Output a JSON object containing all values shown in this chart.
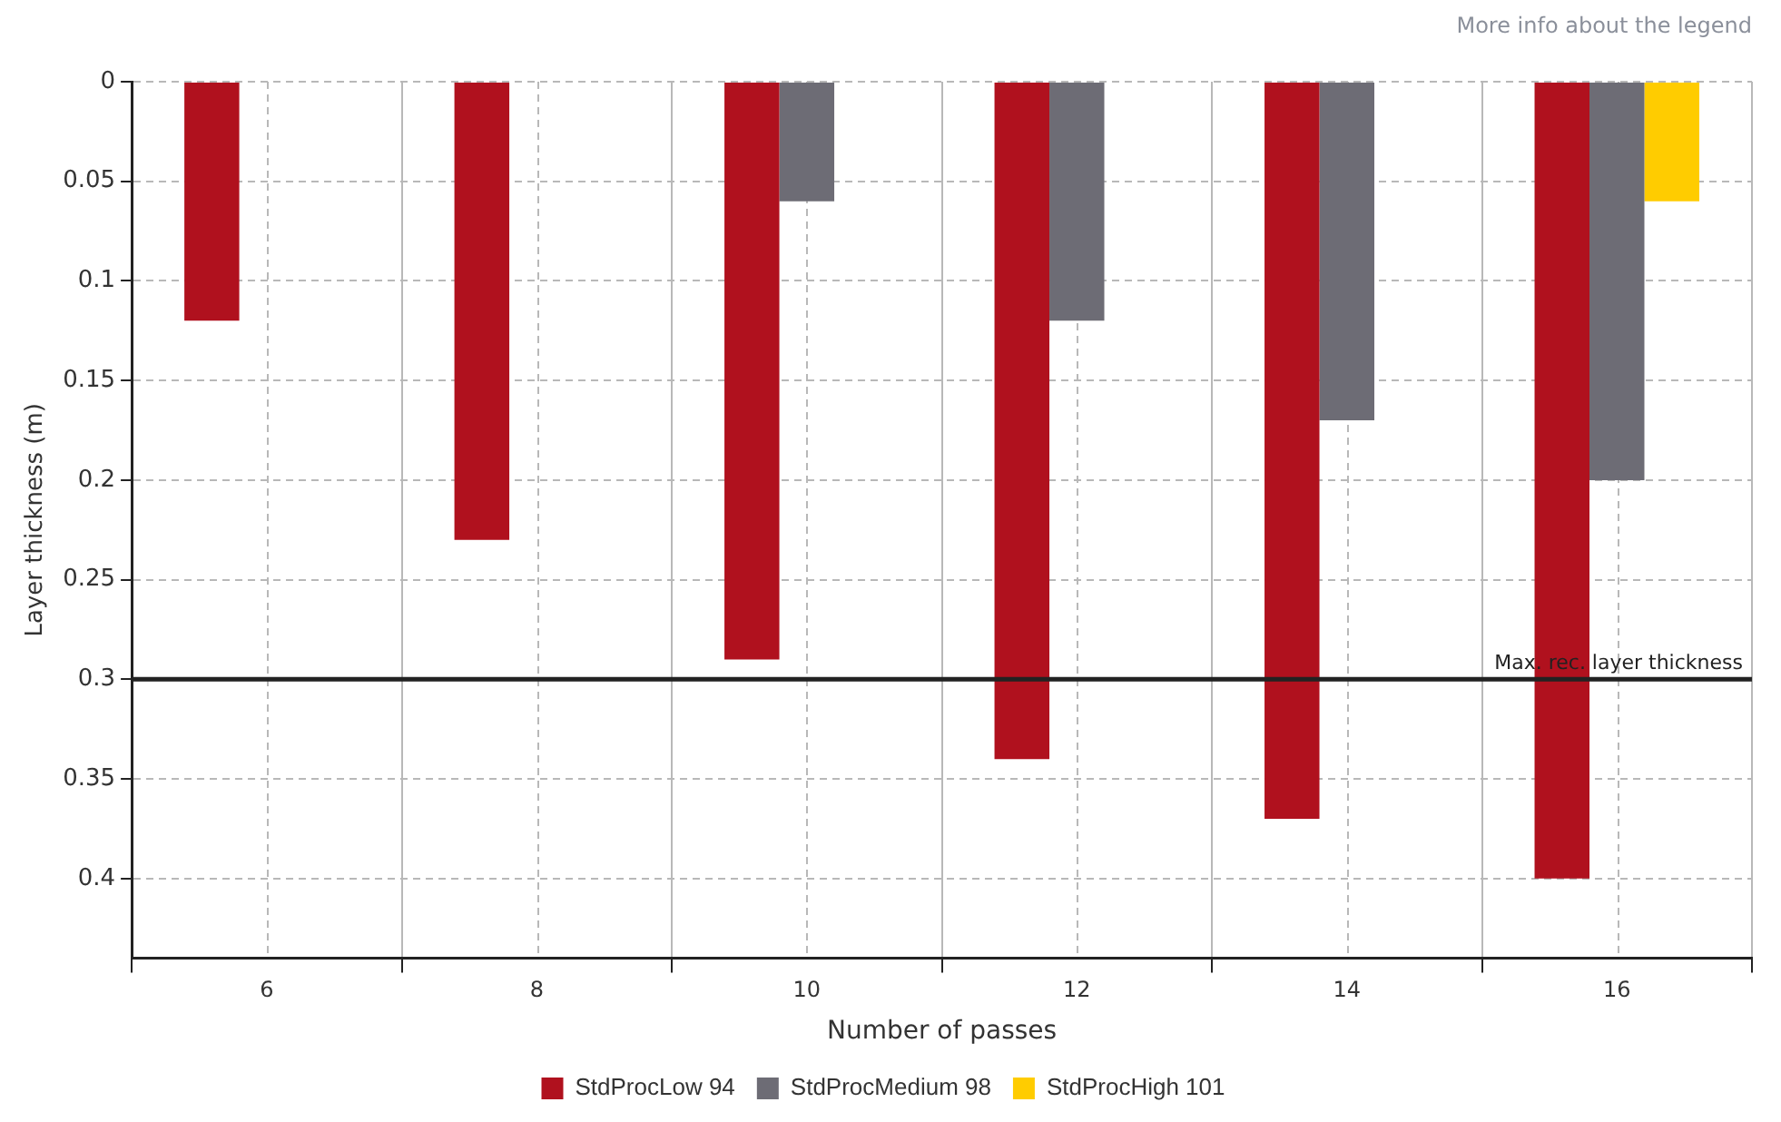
{
  "chart_data": {
    "type": "bar",
    "xlabel": "Number of passes",
    "ylabel": "Layer thickness (m)",
    "categories": [
      "6",
      "8",
      "10",
      "12",
      "14",
      "16"
    ],
    "series": [
      {
        "name": "StdProcLow 94",
        "color": "#b0111e",
        "values": [
          0.12,
          0.23,
          0.29,
          0.34,
          0.37,
          0.4
        ]
      },
      {
        "name": "StdProcMedium 98",
        "color": "#6d6c75",
        "values": [
          null,
          null,
          0.06,
          0.12,
          0.17,
          0.2
        ]
      },
      {
        "name": "StdProcHigh 101",
        "color": "#ffcc00",
        "values": [
          null,
          null,
          null,
          null,
          null,
          0.06
        ]
      }
    ],
    "ylim": [
      0.44,
      0
    ],
    "yticks": [
      0,
      0.05,
      0.1,
      0.15,
      0.2,
      0.25,
      0.3,
      0.35,
      0.4
    ],
    "ref_lines": [
      {
        "axis": "y",
        "value": 0.3,
        "label": "Max. rec. layer thickness",
        "color": "#222222"
      }
    ],
    "annotations": [
      "More info about the legend"
    ],
    "grid": true,
    "legend": "bottom"
  }
}
